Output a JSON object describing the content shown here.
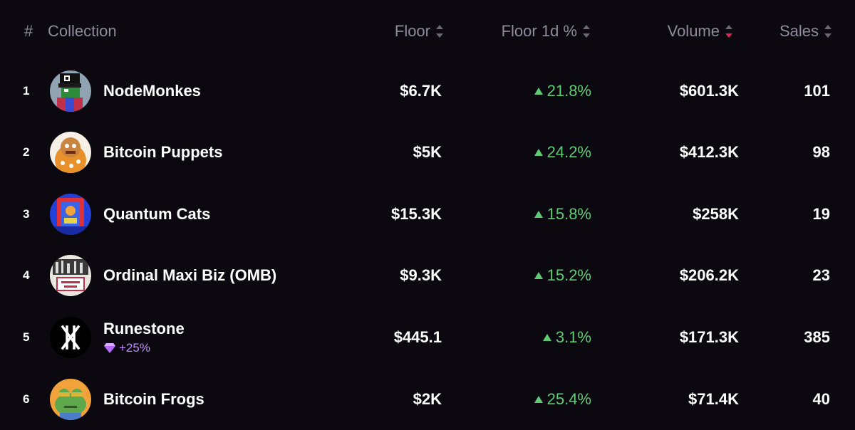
{
  "header": {
    "rank": "#",
    "collection": "Collection",
    "floor": "Floor",
    "floor_change": "Floor 1d %",
    "volume": "Volume",
    "sales": "Sales"
  },
  "sort": {
    "active_column": "volume",
    "direction": "desc",
    "active_color": "#e0245e"
  },
  "colors": {
    "positive": "#5ecb74",
    "badge": "#c08cff",
    "header_text": "#8f8b9c",
    "background": "#0b090f"
  },
  "rows": [
    {
      "rank": "1",
      "name": "NodeMonkes",
      "floor": "$6.7K",
      "change": "21.8%",
      "volume": "$601.3K",
      "sales": "101",
      "icon": "nodemonkes-avatar-icon"
    },
    {
      "rank": "2",
      "name": "Bitcoin Puppets",
      "floor": "$5K",
      "change": "24.2%",
      "volume": "$412.3K",
      "sales": "98",
      "icon": "bitcoin-puppets-avatar-icon"
    },
    {
      "rank": "3",
      "name": "Quantum Cats",
      "floor": "$15.3K",
      "change": "15.8%",
      "volume": "$258K",
      "sales": "19",
      "icon": "quantum-cats-avatar-icon"
    },
    {
      "rank": "4",
      "name": "Ordinal Maxi Biz (OMB)",
      "floor": "$9.3K",
      "change": "15.2%",
      "volume": "$206.2K",
      "sales": "23",
      "icon": "omb-avatar-icon"
    },
    {
      "rank": "5",
      "name": "Runestone",
      "badge": "+25%",
      "badge_icon": "diamond-icon",
      "floor": "$445.1",
      "change": "3.1%",
      "volume": "$171.3K",
      "sales": "385",
      "icon": "runestone-avatar-icon"
    },
    {
      "rank": "6",
      "name": "Bitcoin Frogs",
      "floor": "$2K",
      "change": "25.4%",
      "volume": "$71.4K",
      "sales": "40",
      "icon": "bitcoin-frogs-avatar-icon"
    }
  ]
}
